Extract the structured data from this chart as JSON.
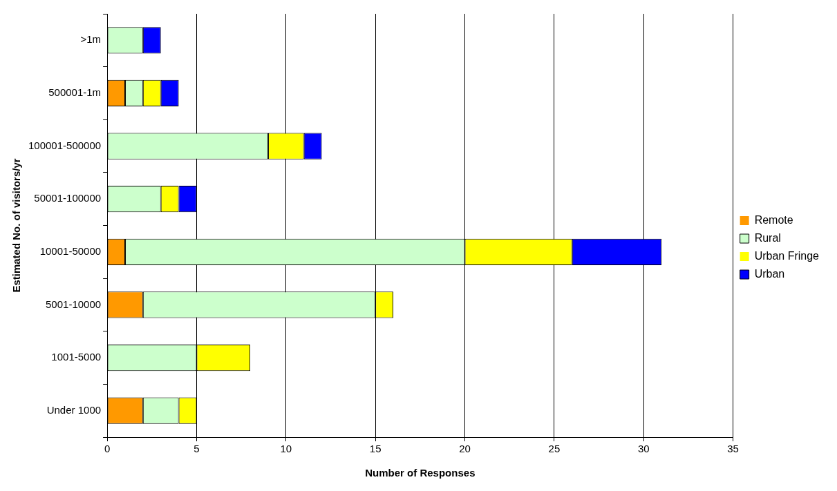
{
  "chart_data": {
    "type": "bar",
    "orientation": "horizontal",
    "stacked": true,
    "xlabel": "Number of Responses",
    "ylabel": "Estimated No. of visitors/yr",
    "categories": [
      ">1m",
      "500001-1m",
      "100001-500000",
      "50001-100000",
      "10001-50000",
      "5001-10000",
      "1001-5000",
      "Under 1000"
    ],
    "series": [
      {
        "name": "Remote",
        "color": "#ff9900",
        "values": [
          0,
          1,
          0,
          0,
          1,
          2,
          0,
          2
        ]
      },
      {
        "name": "Rural",
        "color": "#ccffcc",
        "values": [
          2,
          1,
          9,
          3,
          19,
          13,
          5,
          2
        ]
      },
      {
        "name": "Urban Fringe",
        "color": "#ffff00",
        "values": [
          0,
          1,
          2,
          1,
          6,
          1,
          3,
          1
        ]
      },
      {
        "name": "Urban",
        "color": "#0000ff",
        "values": [
          1,
          1,
          1,
          1,
          5,
          0,
          0,
          0
        ]
      }
    ],
    "xlim": [
      0,
      35
    ],
    "xticks": [
      0,
      5,
      10,
      15,
      20,
      25,
      30,
      35
    ],
    "grid": "x",
    "legend": "right"
  }
}
